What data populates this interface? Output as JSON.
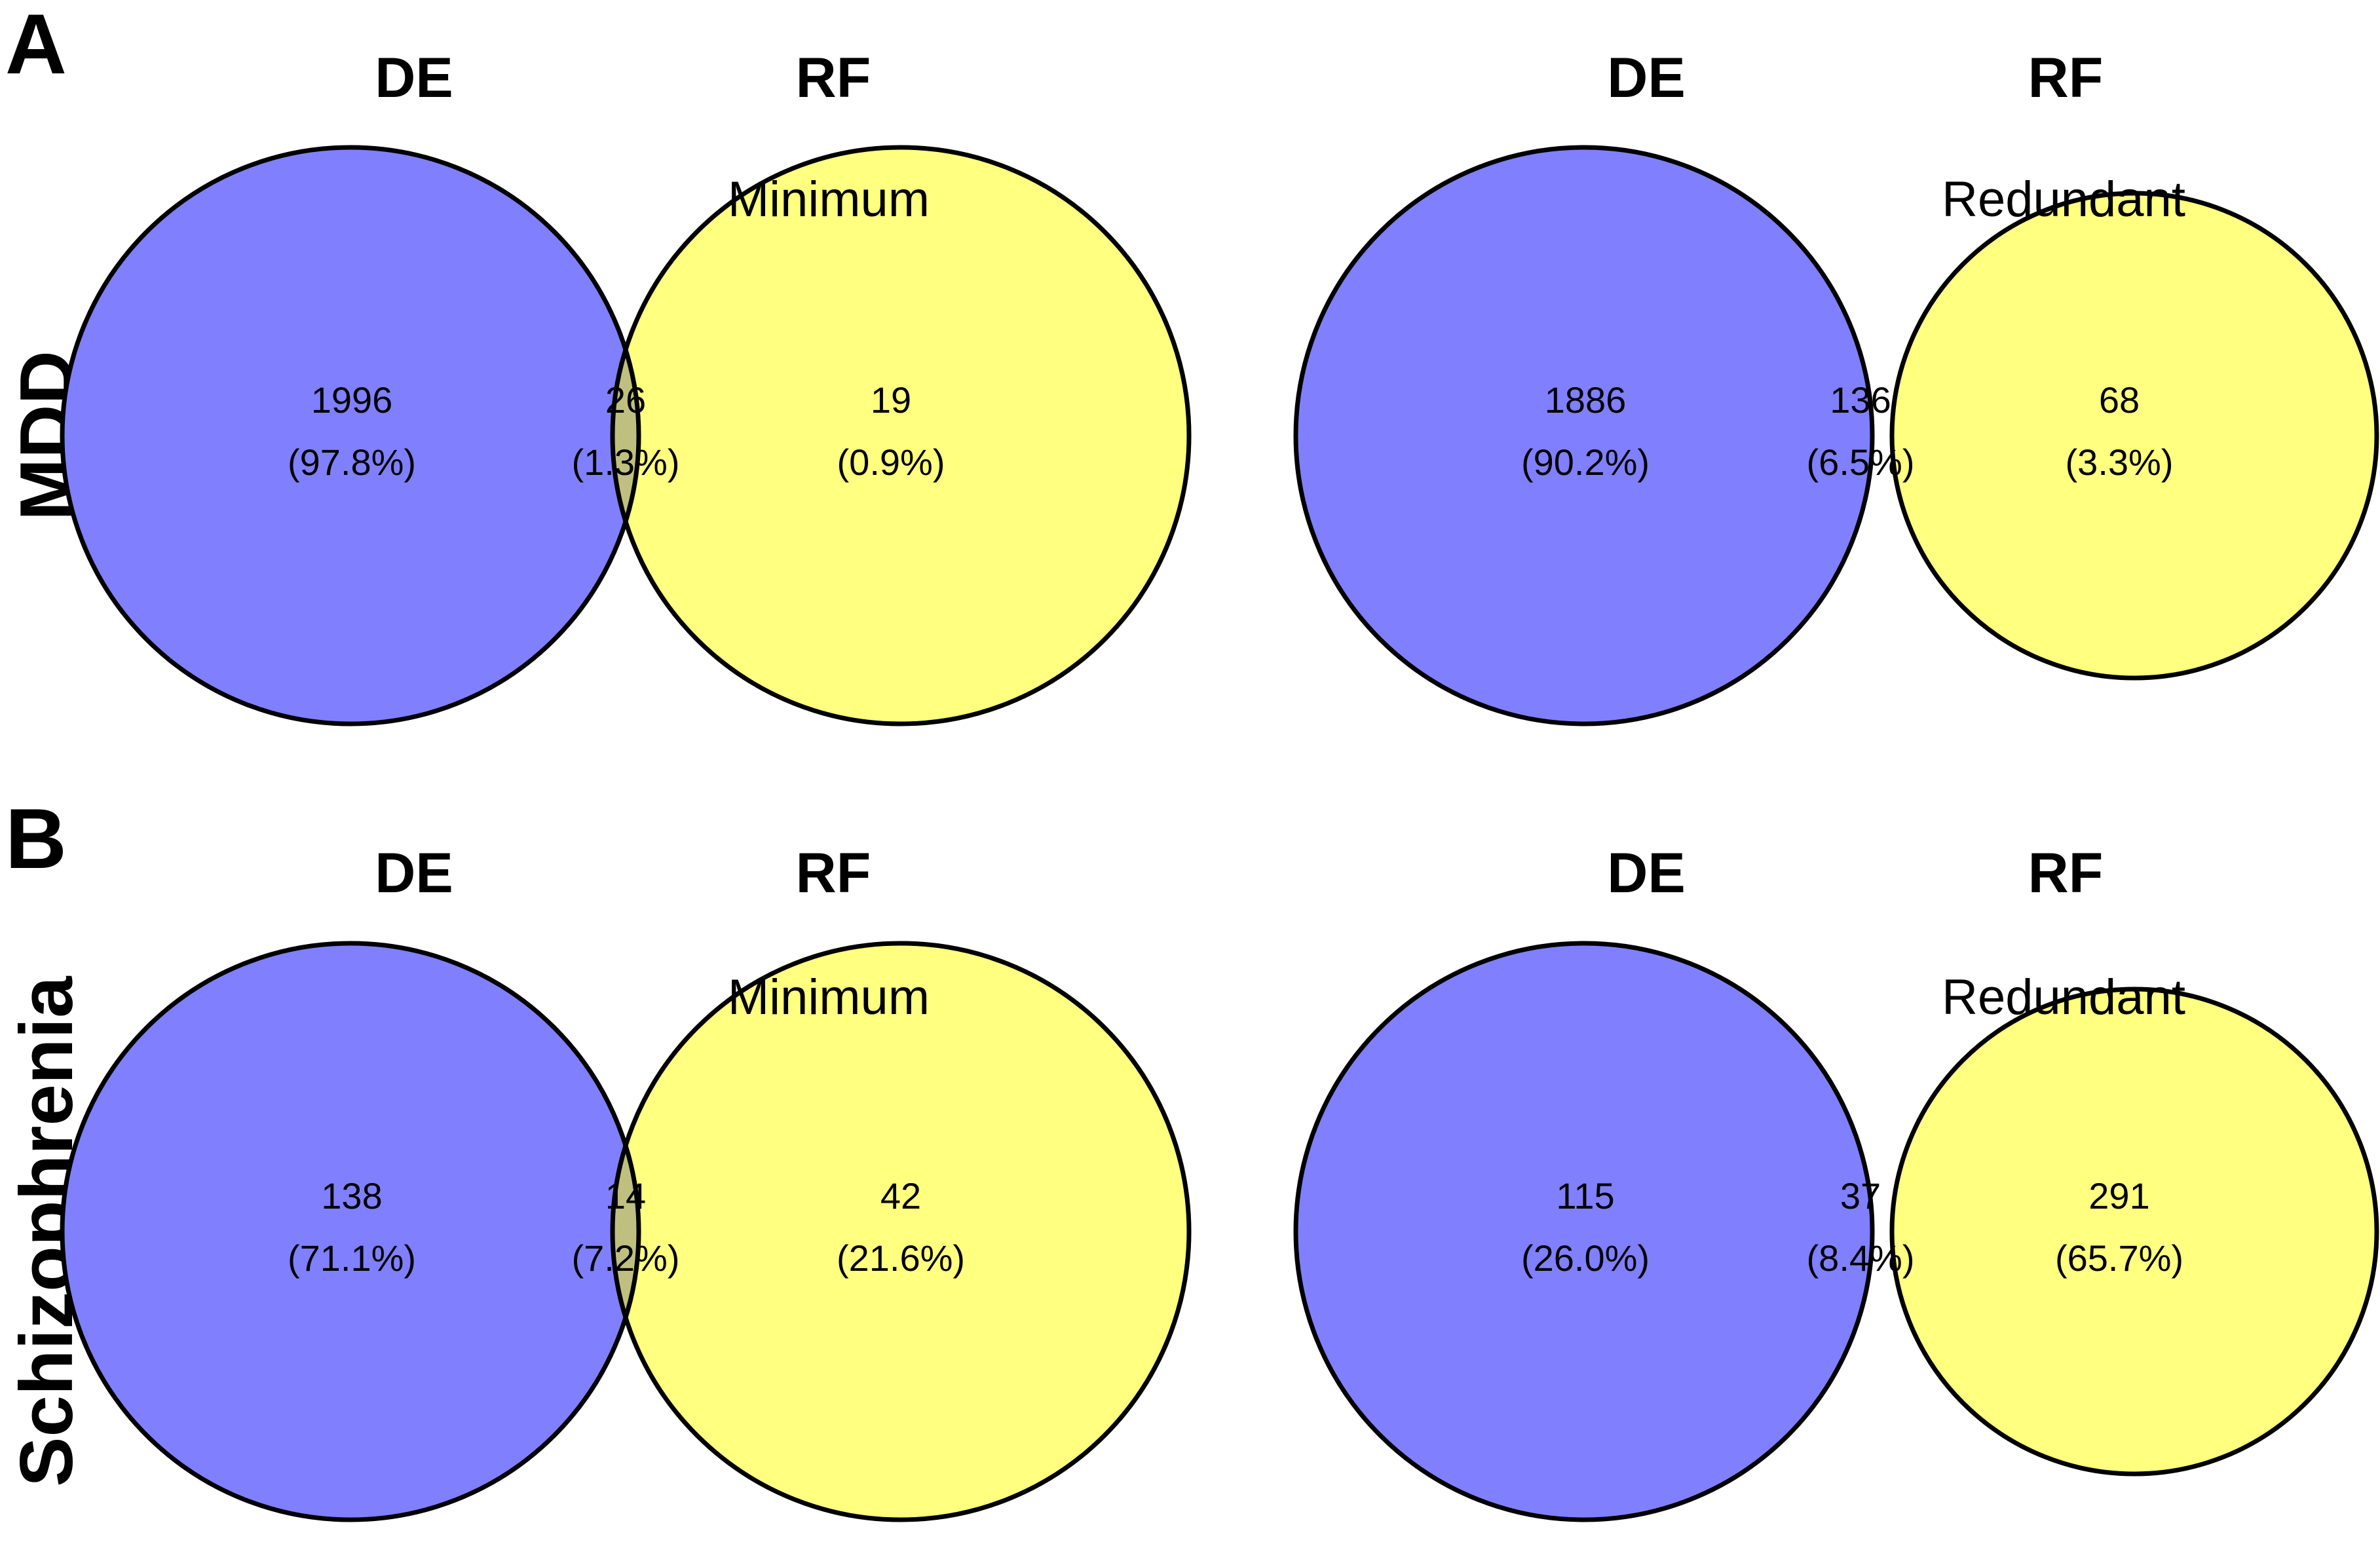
{
  "panels": {
    "A": {
      "letter": "A",
      "row_label": "MDD"
    },
    "B": {
      "letter": "B",
      "row_label": "Schizophrenia"
    }
  },
  "colors": {
    "de": "#8080ff",
    "rf": "#ffff80",
    "overlap": "#bfbf80",
    "outline": "#000000"
  },
  "venns": [
    {
      "left_label": "DE",
      "right_label": "RF",
      "method": "Minimum",
      "left_only": "1996",
      "left_pct": "(97.8%)",
      "overlap": "26",
      "overlap_pct": "(1.3%)",
      "right_only": "19",
      "right_pct": "(0.9%)"
    },
    {
      "left_label": "DE",
      "right_label": "RF",
      "method": "Redundant",
      "left_only": "1886",
      "left_pct": "(90.2%)",
      "overlap": "136",
      "overlap_pct": "(6.5%)",
      "right_only": "68",
      "right_pct": "(3.3%)"
    },
    {
      "left_label": "DE",
      "right_label": "RF",
      "method": "Minimum",
      "left_only": "138",
      "left_pct": "(71.1%)",
      "overlap": "14",
      "overlap_pct": "(7.2%)",
      "right_only": "42",
      "right_pct": "(21.6%)"
    },
    {
      "left_label": "DE",
      "right_label": "RF",
      "method": "Redundant",
      "left_only": "115",
      "left_pct": "(26.0%)",
      "overlap": "37",
      "overlap_pct": "(8.4%)",
      "right_only": "291",
      "right_pct": "(65.7%)"
    }
  ]
}
